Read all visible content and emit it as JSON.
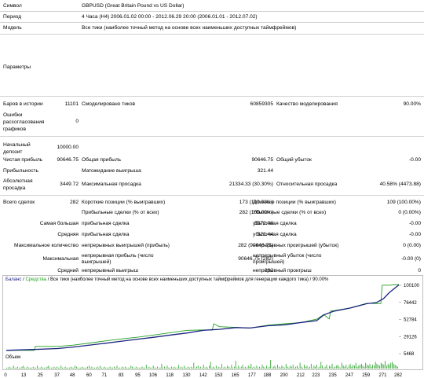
{
  "header": {
    "symbol_label": "Символ",
    "symbol_value": "GBPUSD (Great Britain Pound vs US Dollar)",
    "period_label": "Период",
    "period_value": "4 Часа (H4) 2006.01.02 00:00 - 2012.06.29 20:00 (2006.01.01 - 2012.07.02)",
    "model_label": "Модель",
    "model_value": "Все тики (наиболее точный метод на основе всех наименьших доступных таймфреймов)",
    "params_label": "Параметры"
  },
  "stats": {
    "bars_label": "Баров в истории",
    "bars_value": "11101",
    "ticks_label": "Смоделировано тиков",
    "ticks_value": "60859305",
    "quality_label": "Качество моделирования",
    "quality_value": "90.00%",
    "errors_label": "Ошибки рассогласования графиков",
    "errors_value": "0",
    "deposit_label": "Начальный депозит",
    "deposit_value": "10000.00",
    "net_label": "Чистая прибыль",
    "net_value": "90646.75",
    "gross_profit_label": "Общая прибыль",
    "gross_profit_value": "90646.75",
    "gross_loss_label": "Общий убыток",
    "gross_loss_value": "-0.00",
    "pf_label": "Прибыльность",
    "expect_label": "Матожидание выигрыша",
    "expect_value": "321.44",
    "abs_dd_label": "Абсолютная просадка",
    "abs_dd_value": "3449.72",
    "max_dd_label": "Максимальная просадка",
    "max_dd_value": "21334.33 (30.30%)",
    "rel_dd_label": "Относительная просадка",
    "rel_dd_value": "40.58% (4473.88)",
    "total_label": "Всего сделок",
    "total_value": "282",
    "short_label": "Короткие позиции (% выигравших)",
    "short_value": "173 (100.00%)",
    "long_label": "Длинные позиции (% выигравших)",
    "long_value": "109 (100.00%)",
    "profit_trades_label": "Прибыльные сделки (% от всех)",
    "profit_trades_value": "282 (100.00%)",
    "loss_trades_label": "Убыточные сделки (% от всех)",
    "loss_trades_value": "0 (0.00%)",
    "largest_label": "Самая большая",
    "largest_profit_label": "прибыльная сделка",
    "largest_profit_value": "5372.08",
    "largest_loss_label": "убыточная сделка",
    "largest_loss_value": "-0.00",
    "average_label": "Средняя",
    "avg_profit_label": "прибыльная сделка",
    "avg_profit_value": "321.44",
    "avg_loss_label": "убыточная сделка",
    "avg_loss_value": "-0.00",
    "maxcount_label": "Максимальное количество",
    "cons_wins_label": "непрерывных выигрышей (прибыль)",
    "cons_wins_value": "282 (90646.75)",
    "cons_losses_label": "непрерывных проигрышей (убыток)",
    "cons_losses_value": "0 (0.00)",
    "maximal_label": "Максимальная",
    "cons_profit_label": "непрерывная прибыль (число выигрышей)",
    "cons_profit_value": "90646.75 (282)",
    "cons_loss_label": "непрерывный убыток (число проигрышей)",
    "cons_loss_value": "-0.00 (0)",
    "avg2_label": "Средний",
    "avg_wins_label": "непрерывный выигрыш",
    "avg_wins_value": "282",
    "avg_losses_label": "непрерывный проигрыш",
    "avg_losses_value": "0"
  },
  "chart_legend": {
    "balance": "Баланс",
    "sep1": " / ",
    "equity": "Средства",
    "rest": " / Все тики (наиболее точный метод на основе всех наименьших доступных таймфреймов для генерации каждого тика) / 90.00%"
  },
  "volume_label": "Объем",
  "colors": {
    "balance": "#1a237e",
    "equity": "#22a022",
    "volume": "#22a022",
    "legend_balance": "#1a237e",
    "legend_equity": "#22a022"
  },
  "chart_data": {
    "type": "line",
    "y_ticks": [
      "100100",
      "76442",
      "52784",
      "29126",
      "5468"
    ],
    "x_ticks": [
      "0",
      "13",
      "25",
      "37",
      "48",
      "60",
      "71",
      "83",
      "95",
      "106",
      "118",
      "130",
      "142",
      "153",
      "165",
      "177",
      "188",
      "200",
      "212",
      "223",
      "235",
      "247",
      "259",
      "271",
      "282"
    ],
    "ylim": [
      5468,
      100100
    ],
    "xlim": [
      0,
      282
    ],
    "series": [
      {
        "name": "Баланс",
        "x": [
          0,
          20,
          37,
          48,
          60,
          71,
          83,
          95,
          106,
          118,
          130,
          142,
          153,
          165,
          175,
          188,
          200,
          212,
          223,
          228,
          235,
          247,
          259,
          266,
          271,
          275,
          282
        ],
        "y": [
          10000,
          11200,
          12500,
          14600,
          17300,
          19800,
          22800,
          25600,
          28100,
          31200,
          34100,
          37900,
          39100,
          41600,
          40900,
          44100,
          45300,
          48600,
          51200,
          59100,
          64100,
          68600,
          74700,
          76200,
          81600,
          89800,
          100600
        ]
      },
      {
        "name": "Средства",
        "x": [
          0,
          20,
          21,
          37,
          48,
          60,
          71,
          83,
          95,
          106,
          118,
          130,
          142,
          148,
          149,
          153,
          165,
          175,
          188,
          200,
          212,
          223,
          228,
          232,
          233,
          235,
          247,
          259,
          266,
          269,
          270,
          271,
          275,
          282
        ],
        "y": [
          10000,
          10000,
          15500,
          15500,
          17200,
          20200,
          23100,
          25900,
          28400,
          31200,
          34500,
          37800,
          38200,
          38200,
          46800,
          42800,
          41800,
          40800,
          44800,
          46800,
          48500,
          53200,
          59500,
          53500,
          64500,
          64800,
          68800,
          75200,
          74800,
          74800,
          100000,
          100200,
          100200,
          101200
        ]
      }
    ],
    "volume": [
      1,
      1,
      2,
      1,
      1,
      3,
      1,
      1,
      2,
      1,
      1,
      2,
      3,
      1,
      1,
      2,
      1,
      1,
      1,
      2,
      1,
      1,
      3,
      1,
      1,
      2,
      1,
      1,
      1,
      2,
      3,
      1,
      1,
      1,
      2,
      1,
      2,
      1,
      1,
      3,
      1,
      1,
      2,
      1,
      1,
      1,
      2,
      1,
      1,
      3,
      2,
      1,
      1,
      1,
      2,
      1,
      1,
      1,
      2,
      3,
      1,
      2,
      1,
      1,
      1,
      2,
      1,
      3,
      1,
      1,
      2,
      1,
      1,
      1,
      2,
      1,
      1,
      2,
      1,
      3,
      1,
      1,
      1,
      2,
      1,
      2,
      1,
      1,
      1,
      3,
      2,
      1,
      1,
      2,
      1,
      1,
      1,
      2,
      1,
      1,
      4,
      1,
      2,
      1,
      1,
      3,
      1,
      1,
      2,
      1,
      1,
      5,
      1,
      2,
      1,
      3,
      1,
      1,
      2,
      1,
      2,
      1,
      1,
      4,
      1,
      2,
      1,
      3,
      1,
      1,
      2,
      1,
      2,
      1,
      6,
      1,
      2,
      3,
      1,
      2,
      1,
      4,
      1,
      2,
      1,
      3,
      7,
      1,
      2,
      1,
      3,
      1,
      2,
      1,
      5,
      1,
      2,
      1,
      3,
      2,
      1,
      4,
      1,
      2,
      8,
      1,
      3,
      1,
      2,
      4,
      1,
      2,
      1,
      3,
      2,
      5,
      1,
      2,
      1,
      3,
      1,
      2,
      1,
      4,
      2,
      1,
      3,
      1,
      2,
      9,
      1,
      2,
      3,
      1,
      4,
      2,
      1,
      3,
      2,
      1,
      5,
      2,
      1,
      3,
      2,
      4,
      1,
      2,
      3,
      1,
      6,
      2,
      1,
      4,
      2,
      3,
      1,
      2,
      5,
      1,
      3,
      2,
      4,
      1,
      2,
      7,
      3,
      1,
      2,
      4,
      1,
      3,
      2,
      5,
      1,
      2,
      3,
      4,
      2,
      1,
      6,
      3,
      2,
      4,
      1,
      3,
      5,
      2,
      4,
      3,
      6,
      2,
      3,
      4,
      5,
      3,
      2,
      6,
      4,
      3,
      5,
      2,
      4,
      3,
      7,
      5,
      4,
      3,
      6,
      5,
      4,
      8,
      3,
      5,
      4,
      6,
      7,
      5,
      4,
      3,
      2
    ]
  }
}
